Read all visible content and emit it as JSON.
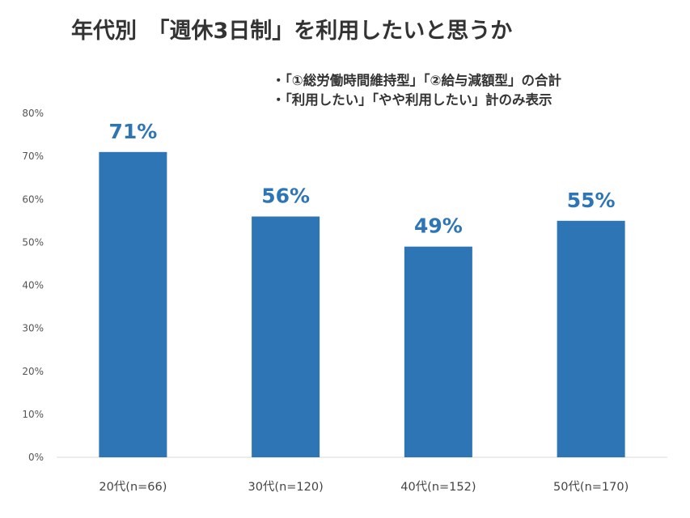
{
  "chart_data": {
    "type": "bar",
    "title": "年代別　「週休3日制」を利用したいと思うか",
    "notes": [
      "・「①総労働時間維持型」「②給与減額型」の合計",
      "・「利用したい」「やや利用したい」計のみ表示"
    ],
    "categories": [
      "20代(n=66)",
      "30代(n=120)",
      "40代(n=152)",
      "50代(n=170)"
    ],
    "values": [
      71,
      56,
      49,
      55
    ],
    "value_labels": [
      "71%",
      "56%",
      "49%",
      "55%"
    ],
    "y_ticks": [
      "0%",
      "10%",
      "20%",
      "30%",
      "40%",
      "50%",
      "60%",
      "70%",
      "80%"
    ],
    "ylim": [
      0,
      80
    ],
    "xlabel": "",
    "ylabel": "",
    "grid": false,
    "colors": {
      "bar": "#2E75B6",
      "label": "#2E75B6",
      "axis": "#d9d9d9",
      "text": "#333333"
    }
  }
}
